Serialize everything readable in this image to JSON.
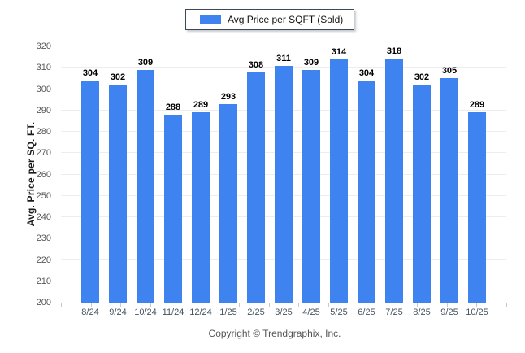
{
  "legend": {
    "label": "Avg Price per SQFT (Sold)"
  },
  "footer": {
    "text": "Copyright © Trendgraphix, Inc."
  },
  "colors": {
    "bar": "#3f83f1",
    "grid": "#ededed",
    "axis": "#c6cacd"
  },
  "chart_data": {
    "type": "bar",
    "title": "",
    "categories": [
      "8/24",
      "9/24",
      "10/24",
      "11/24",
      "12/24",
      "1/25",
      "2/25",
      "3/25",
      "4/25",
      "5/25",
      "6/25",
      "7/25",
      "8/25",
      "9/25",
      "10/25"
    ],
    "values": [
      304,
      302,
      309,
      288,
      289,
      293,
      308,
      311,
      309,
      314,
      304,
      318,
      302,
      305,
      289
    ],
    "xlabel": "",
    "ylabel": "Avg. Price per SQ. FT.",
    "ylim": [
      200,
      320
    ],
    "ytick_step": 10,
    "grid": true,
    "value_labels": true,
    "legend_entries": [
      "Avg Price per SQFT (Sold)"
    ],
    "legend_position": "top-center"
  }
}
